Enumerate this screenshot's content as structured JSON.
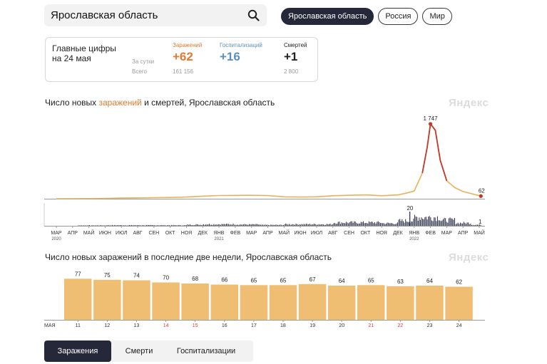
{
  "search": {
    "value": "Ярославская область"
  },
  "icons": {
    "search": "search-icon"
  },
  "pills": [
    "Ярославская область",
    "Россия",
    "Мир"
  ],
  "summary": {
    "title_line1": "Главные цифры",
    "title_line2": "на 24 мая",
    "row_daily": "За сутки",
    "row_total": "Всего",
    "infections": {
      "label": "Заражений",
      "daily": "+62",
      "total": "161 156",
      "color": "#e07b2f"
    },
    "hospitalizations": {
      "label": "Госпитализаций",
      "daily": "+16",
      "color": "#5b8fc0"
    },
    "deaths": {
      "label": "Смертей",
      "daily": "+1",
      "total": "2 800",
      "color": "#222222"
    }
  },
  "chart1_title": {
    "part1": "Число новых ",
    "part2": "заражений",
    "part3": " и смертей",
    "part4": ", Ярославская область"
  },
  "chart2_title": "Число новых заражений в последние две недели, Ярославская область",
  "brand_watermark": "Яндекс",
  "chart_data": [
    {
      "type": "line",
      "title": "Число новых заражений и смертей, Ярославская область",
      "x_tick_labels": [
        "МАР",
        "АПР",
        "МАЙ",
        "ИЮН",
        "ИЮЛ",
        "АВГ",
        "СЕН",
        "ОКТ",
        "НОЯ",
        "ДЕК",
        "ЯНВ",
        "ФЕВ",
        "МАР",
        "АПР",
        "МАЙ",
        "ИЮН",
        "ИЮЛ",
        "АВГ",
        "СЕН",
        "ОКТ",
        "НОЯ",
        "ДЕК",
        "ЯНВ",
        "ФЕВ",
        "МАР",
        "АПР",
        "МАЙ"
      ],
      "year_labels": [
        {
          "text": "2020",
          "under": 0
        },
        {
          "text": "2021",
          "under": 10
        },
        {
          "text": "2022",
          "under": 22
        }
      ],
      "series": [
        {
          "name": "Заражений",
          "color": "#e8b15a",
          "peak_color": "#c0392b",
          "points": [
            [
              0,
              0
            ],
            [
              1,
              1
            ],
            [
              2,
              3
            ],
            [
              3,
              8
            ],
            [
              4,
              15
            ],
            [
              5,
              20
            ],
            [
              6,
              25
            ],
            [
              7,
              30
            ],
            [
              8,
              40
            ],
            [
              9,
              60
            ],
            [
              10,
              75
            ],
            [
              11,
              78
            ],
            [
              12,
              80
            ],
            [
              13,
              75
            ],
            [
              14,
              45
            ],
            [
              15,
              40
            ],
            [
              16,
              45
            ],
            [
              17,
              70
            ],
            [
              18,
              80
            ],
            [
              19,
              90
            ],
            [
              20,
              70
            ],
            [
              21,
              90
            ],
            [
              21.5,
              130
            ],
            [
              22,
              180
            ],
            [
              22.5,
              600
            ],
            [
              22.8,
              1200
            ],
            [
              23,
              1747
            ],
            [
              23.3,
              1600
            ],
            [
              23.6,
              900
            ],
            [
              24,
              420
            ],
            [
              24.5,
              260
            ],
            [
              25,
              170
            ],
            [
              25.6,
              110
            ],
            [
              26.1,
              62
            ]
          ],
          "labels": [
            {
              "x": 23,
              "y": 1747,
              "text": "1 747"
            },
            {
              "x": 26.1,
              "y": 62,
              "text": "62"
            }
          ]
        },
        {
          "name": "смертей",
          "color": "#3f4259",
          "labels": [
            {
              "text": "20"
            },
            {
              "text": "1"
            }
          ]
        }
      ]
    },
    {
      "type": "bar",
      "title": "Число новых заражений в последние две недели, Ярославская область",
      "month_label": "МАЯ",
      "categories": [
        "11",
        "12",
        "13",
        "14",
        "15",
        "16",
        "17",
        "18",
        "19",
        "20",
        "21",
        "22",
        "23",
        "24"
      ],
      "weekend": [
        false,
        false,
        false,
        true,
        true,
        false,
        false,
        false,
        false,
        false,
        true,
        true,
        false,
        false
      ],
      "values": [
        77,
        75,
        74,
        70,
        68,
        66,
        65,
        65,
        67,
        64,
        65,
        63,
        64,
        62
      ],
      "bar_color": "#f0be73",
      "weekend_color": "#d43f3a"
    }
  ],
  "tabs": [
    "Заражения",
    "Смерти",
    "Госпитализации"
  ]
}
